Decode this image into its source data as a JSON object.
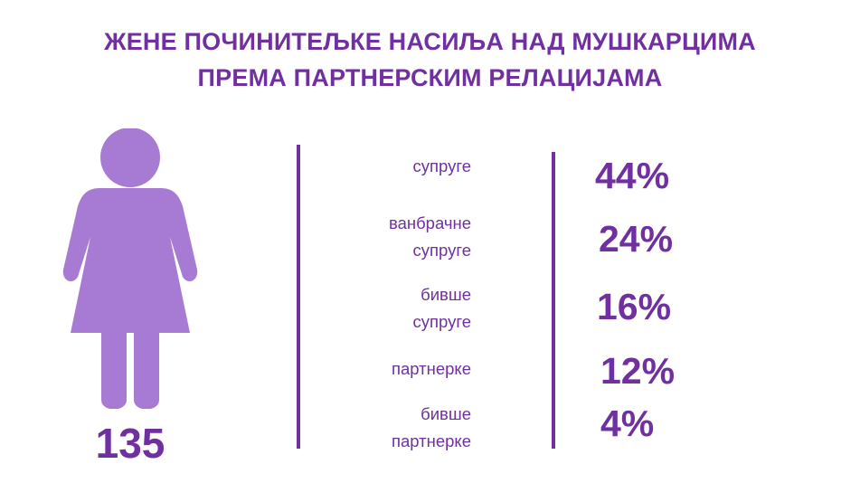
{
  "title": {
    "line1": "ЖЕНЕ ПОЧИНИТЕЉКЕ НАСИЉА НАД МУШКАРЦИМА",
    "line2": "ПРЕМА ПАРТНЕРСКИМ РЕЛАЦИЈАМА"
  },
  "figure": {
    "icon": "woman-icon",
    "total": "135"
  },
  "colors": {
    "accent": "#7030a0",
    "figure": "#a77bd3"
  },
  "chart_data": {
    "type": "table",
    "title": "ЖЕНЕ ПОЧИНИТЕЉКЕ НАСИЉА НАД МУШКАРЦИМА ПРЕМА ПАРТНЕРСКИМ РЕЛАЦИЈАМА",
    "total": 135,
    "unit": "%",
    "rows": [
      {
        "category": [
          "супруге"
        ],
        "value": 44,
        "label": "44%"
      },
      {
        "category": [
          "ванбрачне",
          "супруге"
        ],
        "value": 24,
        "label": "24%"
      },
      {
        "category": [
          "бивше",
          "супруге"
        ],
        "value": 16,
        "label": "16%"
      },
      {
        "category": [
          "партнерке"
        ],
        "value": 12,
        "label": "12%"
      },
      {
        "category": [
          "бивше",
          "партнерке"
        ],
        "value": 4,
        "label": "4%"
      }
    ]
  }
}
